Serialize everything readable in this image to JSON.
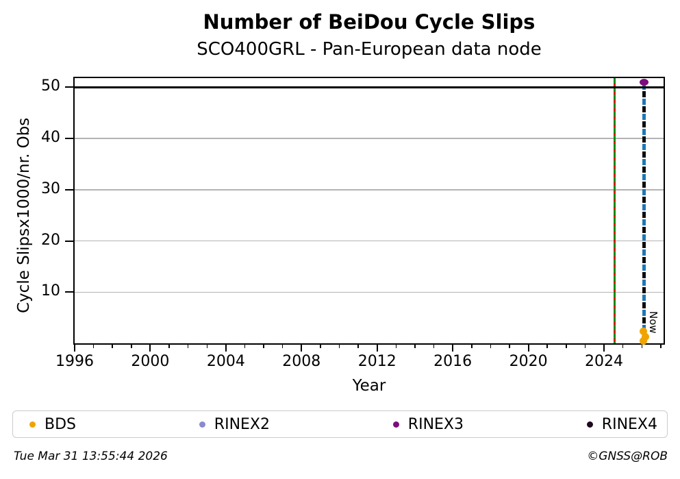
{
  "figure": {
    "footer_left": "Tue Mar 31 13:55:44 2026",
    "footer_right": "©GNSS@ROB"
  },
  "chart_data": {
    "type": "scatter",
    "title": "Number of BeiDou Cycle Slips",
    "subtitle": "SCO400GRL - Pan-European data node",
    "xlabel": "Year",
    "ylabel": "Cycle Slipsx1000/nr. Obs",
    "xlim": [
      1996,
      2027.15
    ],
    "ylim": [
      0,
      51.8
    ],
    "xticks": [
      1996,
      2000,
      2004,
      2008,
      2012,
      2016,
      2020,
      2024
    ],
    "yticks": [
      10,
      20,
      30,
      40,
      50
    ],
    "grid": "horizontal",
    "gridline_color": "#b3b3b3",
    "legend_position": "bottom",
    "series": [
      {
        "name": "BDS",
        "color": "#f0a400",
        "points": [
          {
            "x": 2026.07,
            "y": 2.4
          },
          {
            "x": 2026.18,
            "y": 1.3
          },
          {
            "x": 2026.07,
            "y": 0.5
          }
        ]
      },
      {
        "name": "RINEX2",
        "color": "#8a8ad0",
        "points": []
      },
      {
        "name": "RINEX3",
        "color": "#7d0d7d",
        "points": [
          {
            "x": 2026.12,
            "y": 51.0
          }
        ]
      },
      {
        "name": "RINEX4",
        "color": "#1d0a1d",
        "points": []
      }
    ],
    "annotations": {
      "cap_line_y": 50,
      "event_line_x": 2024.55,
      "event_line_colors": [
        "#0c8a0c",
        "#dd0f0f"
      ],
      "now_line_x": 2026.12,
      "now_line_colors": [
        "#1f77b4",
        "#0d0d0d"
      ],
      "now_label": "Now"
    }
  }
}
